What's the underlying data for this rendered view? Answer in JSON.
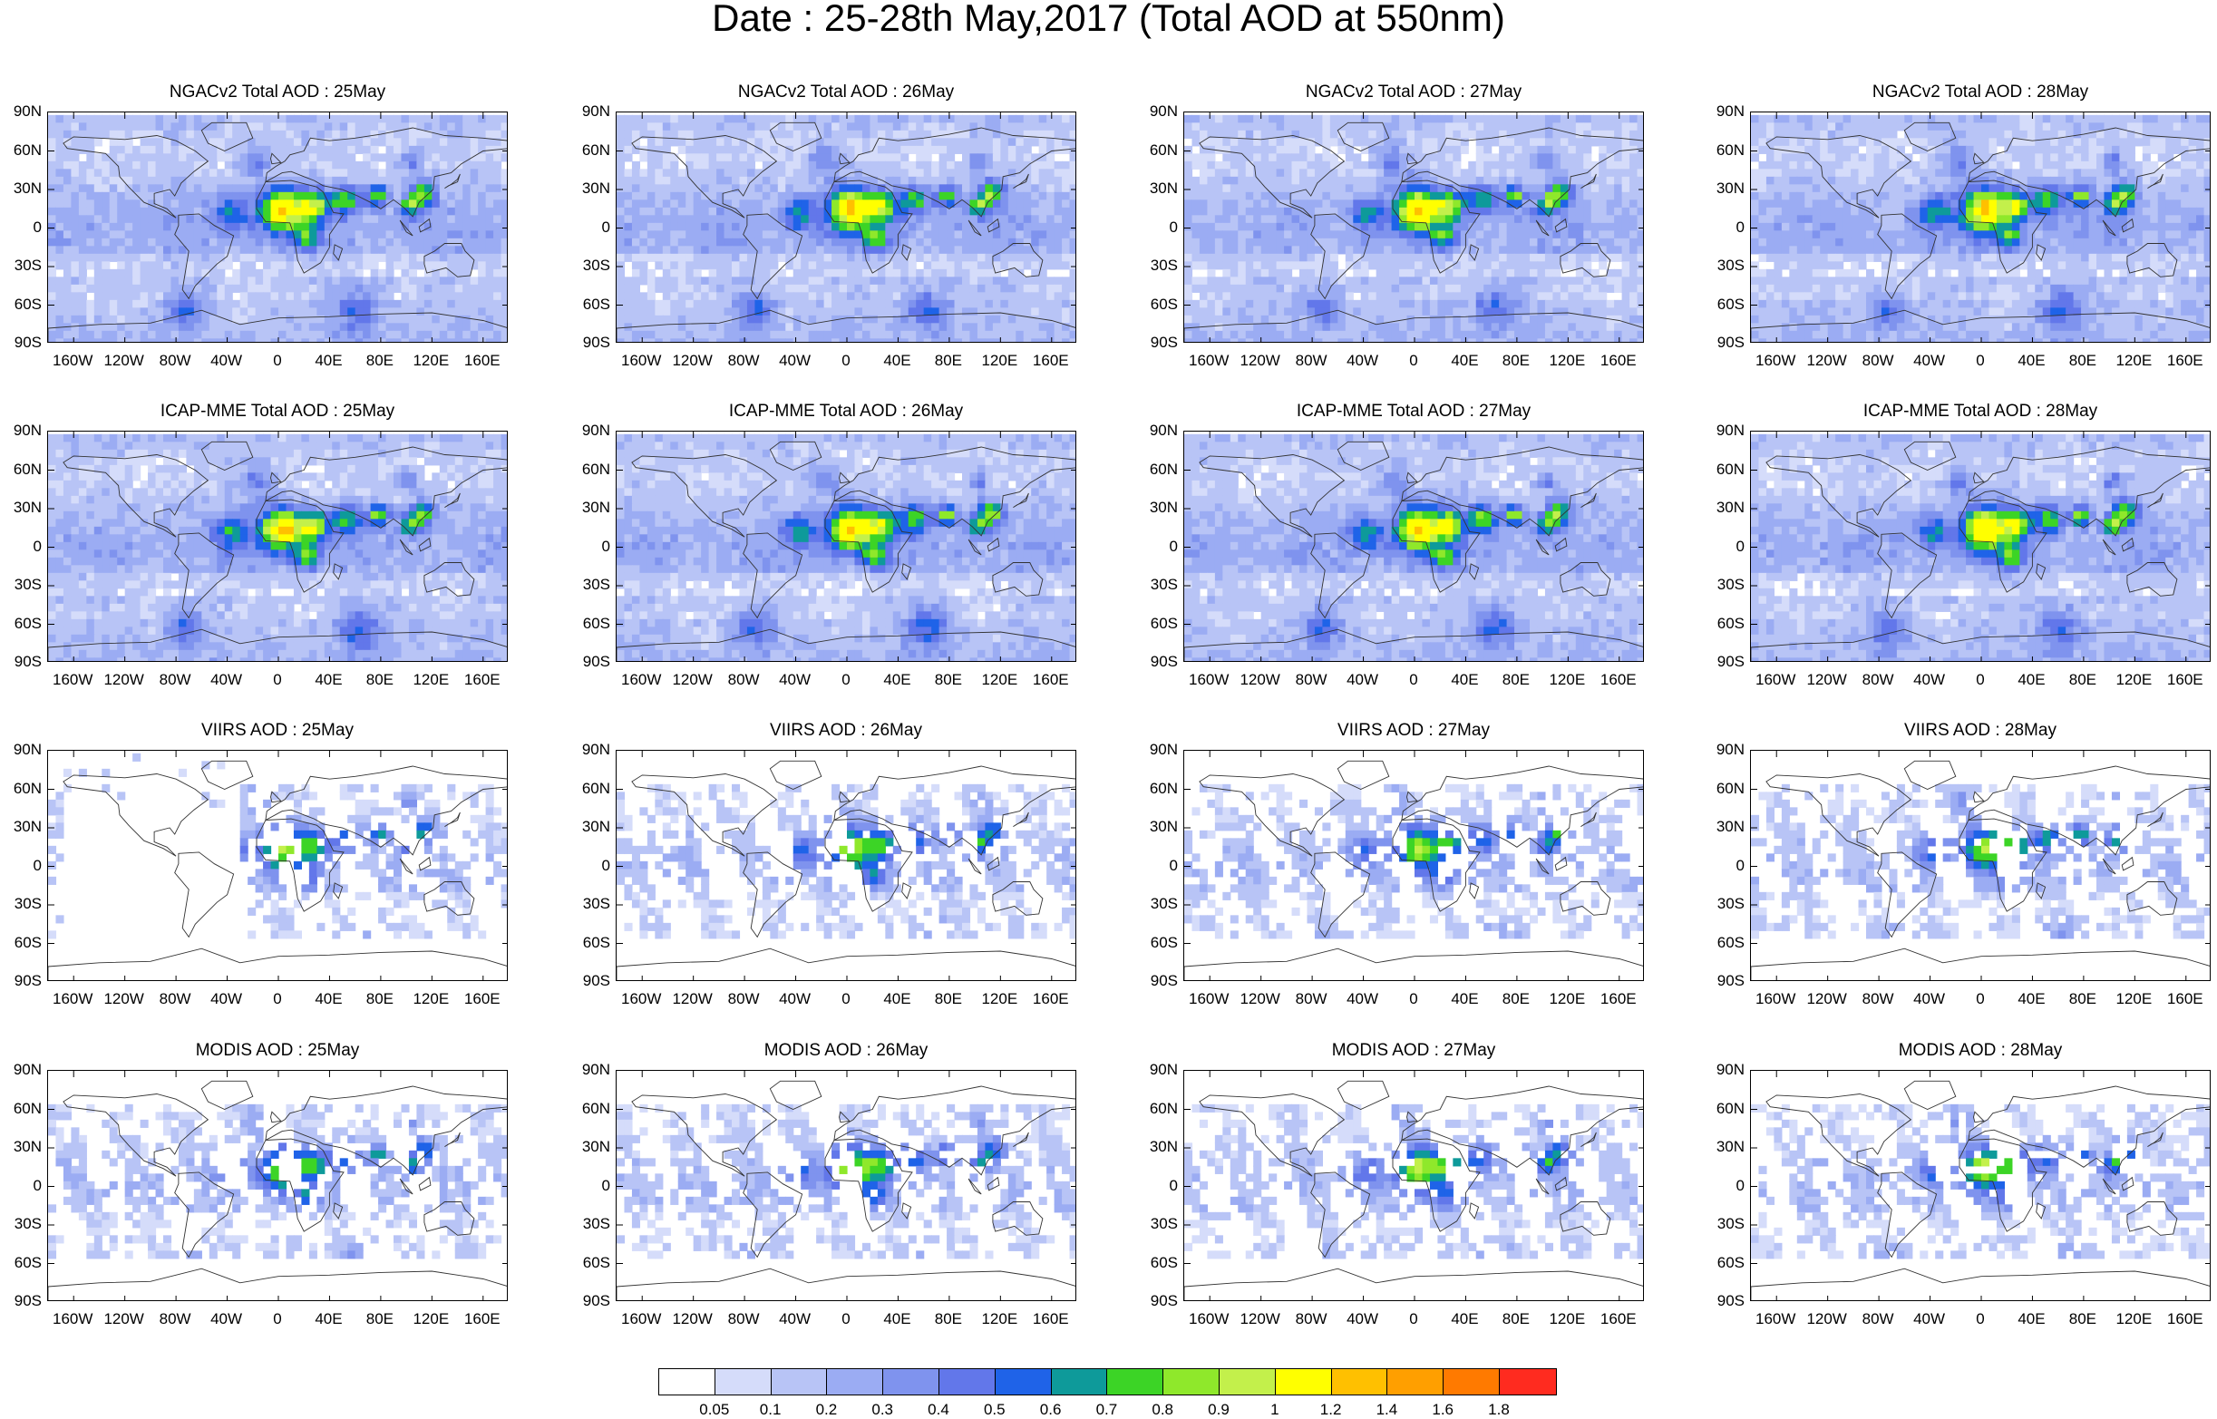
{
  "title": "Date : 25-28th May,2017 (Total AOD at 550nm)",
  "panels": [
    {
      "title": "NGACv2 Total AOD : 25May",
      "type": "model"
    },
    {
      "title": "NGACv2 Total AOD : 26May",
      "type": "model"
    },
    {
      "title": "NGACv2 Total AOD : 27May",
      "type": "model"
    },
    {
      "title": "NGACv2 Total AOD : 28May",
      "type": "model"
    },
    {
      "title": "ICAP-MME Total AOD : 25May",
      "type": "model"
    },
    {
      "title": "ICAP-MME Total AOD : 26May",
      "type": "model"
    },
    {
      "title": "ICAP-MME Total AOD : 27May",
      "type": "model"
    },
    {
      "title": "ICAP-MME Total AOD : 28May",
      "type": "model"
    },
    {
      "title": "VIIRS AOD : 25May",
      "type": "viirs"
    },
    {
      "title": "VIIRS AOD : 26May",
      "type": "viirs"
    },
    {
      "title": "VIIRS AOD : 27May",
      "type": "viirs"
    },
    {
      "title": "VIIRS AOD : 28May",
      "type": "viirs"
    },
    {
      "title": "MODIS AOD : 25May",
      "type": "modis"
    },
    {
      "title": "MODIS AOD : 26May",
      "type": "modis"
    },
    {
      "title": "MODIS AOD : 27May",
      "type": "modis"
    },
    {
      "title": "MODIS AOD : 28May",
      "type": "modis"
    }
  ],
  "lat_ticks": [
    "90N",
    "60N",
    "30N",
    "0",
    "30S",
    "60S",
    "90S"
  ],
  "lon_ticks": [
    "160W",
    "120W",
    "80W",
    "40W",
    "0",
    "40E",
    "80E",
    "120E",
    "160E"
  ],
  "colorbar": {
    "labels": [
      "0.05",
      "0.1",
      "0.2",
      "0.3",
      "0.4",
      "0.5",
      "0.6",
      "0.7",
      "0.8",
      "0.9",
      "1",
      "1.2",
      "1.4",
      "1.6",
      "1.8"
    ],
    "colors": [
      "#ffffff",
      "#d5dcfa",
      "#b8c4f6",
      "#9bacf3",
      "#7f93ee",
      "#6277ea",
      "#1f63e8",
      "#0e9a9a",
      "#3cd426",
      "#8fe82b",
      "#c3f04b",
      "#ffff00",
      "#ffc000",
      "#ff9f00",
      "#ff7a00",
      "#ff2b1f"
    ]
  }
}
